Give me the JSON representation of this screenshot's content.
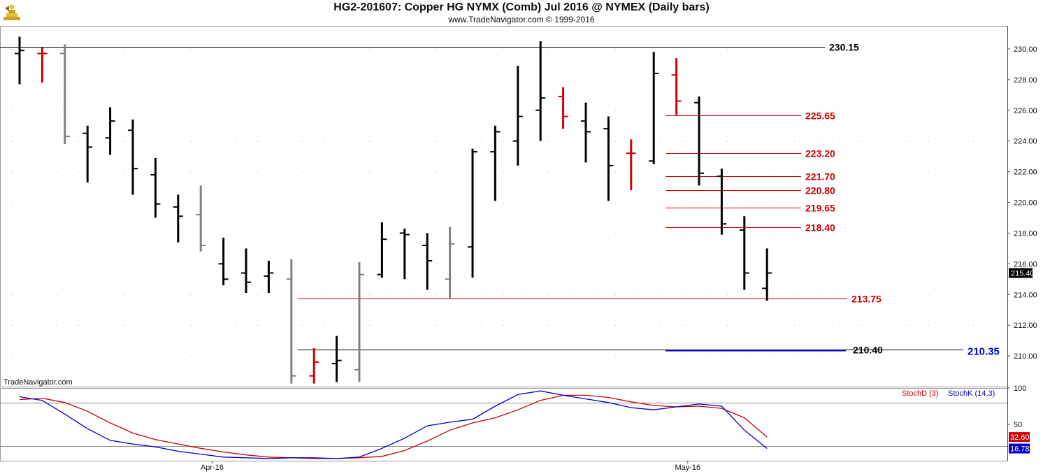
{
  "header": {
    "title": "HG2-201607:  Copper HG NYMX (Comb) Jul 2016 @ NYMEX  (Daily bars)",
    "subtitle": "www.TradeNavigator.com © 1999-2016",
    "watermark": "TradeNavigator.com"
  },
  "colors": {
    "up": "#000000",
    "down": "#cc0000",
    "neutral": "#808080",
    "level_line": "#dd2222",
    "stochD": "#dd0000",
    "stochK": "#0000cc",
    "last_price_bg": "#000000",
    "axis": "#555555"
  },
  "chart_data": [
    {
      "type": "ohlc",
      "title": "HG2-201607:  Copper HG NYMX (Comb) Jul 2016 @ NYMEX  (Daily bars)",
      "ylim": [
        208.0,
        231.5
      ],
      "y_ticks": [
        "230.00",
        "228.00",
        "226.00",
        "224.00",
        "222.00",
        "220.00",
        "218.00",
        "216.00",
        "214.00",
        "212.00",
        "210.00"
      ],
      "x_ticks": [
        "Apr-16",
        "May-16"
      ],
      "last_price": "215.40",
      "bars": [
        {
          "o": 229.7,
          "h": 230.8,
          "l": 227.7,
          "c": 229.9,
          "color": "black"
        },
        {
          "o": 229.7,
          "h": 230.1,
          "l": 227.8,
          "c": 229.7,
          "color": "red"
        },
        {
          "o": 229.7,
          "h": 230.3,
          "l": 223.8,
          "c": 224.3,
          "color": "gray"
        },
        {
          "o": 224.5,
          "h": 225.0,
          "l": 221.3,
          "c": 223.6,
          "color": "black"
        },
        {
          "o": 224.2,
          "h": 226.2,
          "l": 223.1,
          "c": 225.3,
          "color": "black"
        },
        {
          "o": 224.7,
          "h": 225.4,
          "l": 220.5,
          "c": 222.2,
          "color": "black"
        },
        {
          "o": 221.8,
          "h": 222.9,
          "l": 219.0,
          "c": 219.9,
          "color": "black"
        },
        {
          "o": 219.7,
          "h": 220.5,
          "l": 217.4,
          "c": 219.1,
          "color": "black"
        },
        {
          "o": 219.2,
          "h": 221.1,
          "l": 216.8,
          "c": 217.2,
          "color": "gray"
        },
        {
          "o": 216.0,
          "h": 217.7,
          "l": 214.6,
          "c": 215.0,
          "color": "black"
        },
        {
          "o": 215.4,
          "h": 217.0,
          "l": 214.1,
          "c": 214.8,
          "color": "black"
        },
        {
          "o": 215.2,
          "h": 216.2,
          "l": 214.1,
          "c": 215.4,
          "color": "black"
        },
        {
          "o": 215.0,
          "h": 216.3,
          "l": 208.2,
          "c": 208.7,
          "color": "gray"
        },
        {
          "o": 208.7,
          "h": 210.5,
          "l": 208.2,
          "c": 209.6,
          "color": "red"
        },
        {
          "o": 209.5,
          "h": 211.3,
          "l": 208.3,
          "c": 209.7,
          "color": "black"
        },
        {
          "o": 209.1,
          "h": 216.1,
          "l": 208.3,
          "c": 215.3,
          "color": "gray"
        },
        {
          "o": 215.3,
          "h": 218.7,
          "l": 215.1,
          "c": 217.6,
          "color": "black"
        },
        {
          "o": 218.0,
          "h": 218.3,
          "l": 215.0,
          "c": 217.9,
          "color": "black"
        },
        {
          "o": 217.2,
          "h": 218.0,
          "l": 214.3,
          "c": 216.2,
          "color": "black"
        },
        {
          "o": 215.0,
          "h": 218.4,
          "l": 213.7,
          "c": 217.3,
          "color": "gray"
        },
        {
          "o": 217.1,
          "h": 223.5,
          "l": 215.1,
          "c": 223.3,
          "color": "black"
        },
        {
          "o": 223.3,
          "h": 225.0,
          "l": 220.1,
          "c": 224.6,
          "color": "black"
        },
        {
          "o": 224.0,
          "h": 228.9,
          "l": 222.4,
          "c": 225.6,
          "color": "black"
        },
        {
          "o": 226.0,
          "h": 230.5,
          "l": 224.0,
          "c": 226.8,
          "color": "black"
        },
        {
          "o": 226.9,
          "h": 227.5,
          "l": 224.8,
          "c": 225.6,
          "color": "red"
        },
        {
          "o": 225.3,
          "h": 226.5,
          "l": 222.6,
          "c": 224.6,
          "color": "black"
        },
        {
          "o": 224.8,
          "h": 225.6,
          "l": 220.1,
          "c": 222.4,
          "color": "black"
        },
        {
          "o": 223.2,
          "h": 224.1,
          "l": 220.8,
          "c": 223.2,
          "color": "red"
        },
        {
          "o": 222.7,
          "h": 229.8,
          "l": 222.5,
          "c": 228.4,
          "color": "black"
        },
        {
          "o": 228.3,
          "h": 229.4,
          "l": 225.7,
          "c": 226.6,
          "color": "red"
        },
        {
          "o": 226.5,
          "h": 226.9,
          "l": 221.1,
          "c": 221.9,
          "color": "black"
        },
        {
          "o": 221.7,
          "h": 222.2,
          "l": 217.9,
          "c": 218.6,
          "color": "black"
        },
        {
          "o": 218.2,
          "h": 219.1,
          "l": 214.3,
          "c": 215.4,
          "color": "black"
        },
        {
          "o": 214.4,
          "h": 217.0,
          "l": 213.6,
          "c": 215.4,
          "color": "black"
        }
      ],
      "levels": [
        {
          "label": "230.15",
          "value": 230.15,
          "color": "black"
        },
        {
          "label": "225.65",
          "value": 225.65,
          "color": "red"
        },
        {
          "label": "223.20",
          "value": 223.2,
          "color": "red"
        },
        {
          "label": "221.70",
          "value": 221.7,
          "color": "red"
        },
        {
          "label": "220.80",
          "value": 220.8,
          "color": "red"
        },
        {
          "label": "219.65",
          "value": 219.65,
          "color": "red"
        },
        {
          "label": "218.40",
          "value": 218.4,
          "color": "red"
        },
        {
          "label": "213.75",
          "value": 213.75,
          "color": "red"
        },
        {
          "label": "210.40",
          "value": 210.4,
          "color": "black"
        },
        {
          "label": "210.35",
          "value": 210.35,
          "color": "blue"
        }
      ]
    },
    {
      "type": "line",
      "ylim": [
        0,
        100
      ],
      "y_ticks": [
        "100",
        "50"
      ],
      "reference_lines": [
        80,
        20
      ],
      "legend": [
        "StochD (3)",
        "StochK (14,3)"
      ],
      "series": [
        {
          "name": "StochD (3)",
          "color": "red",
          "last": "32.60",
          "values": [
            84,
            86,
            80,
            68,
            52,
            38,
            29,
            23,
            17,
            12,
            8,
            5,
            4,
            3,
            3,
            4,
            6,
            14,
            27,
            42,
            52,
            59,
            70,
            83,
            90,
            90,
            87,
            81,
            76,
            74,
            75,
            72,
            59,
            32.6
          ]
        },
        {
          "name": "StochK (14,3)",
          "color": "blue",
          "last": "16.78",
          "values": [
            88,
            83,
            64,
            44,
            28,
            23,
            19,
            13,
            9,
            5,
            4,
            3,
            4,
            4,
            3,
            5,
            17,
            31,
            48,
            53,
            57,
            75,
            91,
            96,
            90,
            85,
            80,
            73,
            70,
            74,
            78,
            75,
            42,
            16.78
          ]
        }
      ]
    }
  ]
}
